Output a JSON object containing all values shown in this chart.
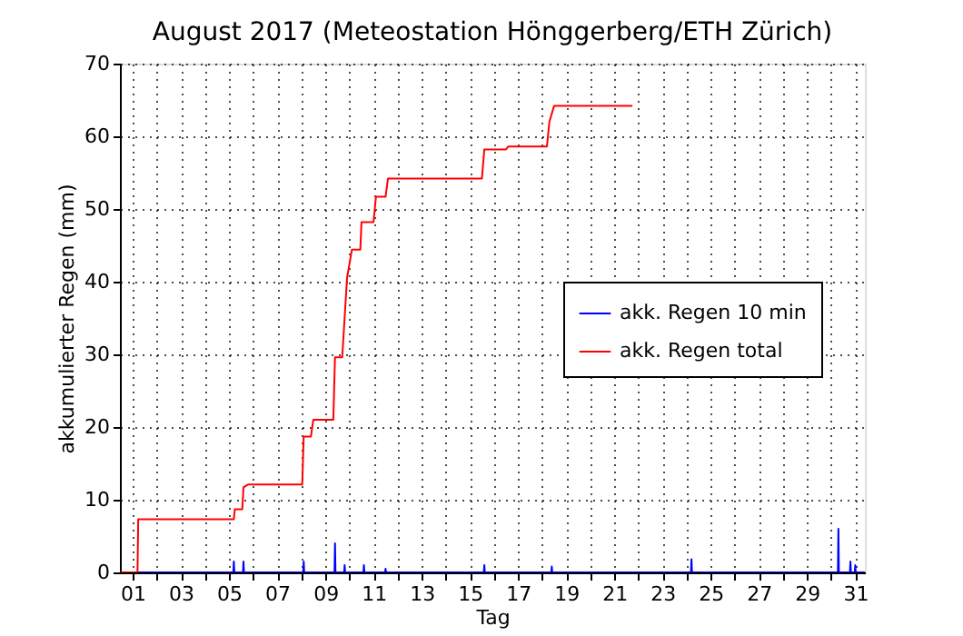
{
  "chart_data": {
    "type": "line",
    "title": "August 2017  (Meteostation Hönggerberg/ETH Zürich)",
    "xlabel": "Tag",
    "ylabel": "akkumulierter Regen (mm)",
    "xlim": [
      0.47,
      31.4
    ],
    "ylim": [
      0,
      70
    ],
    "xticks": [
      {
        "value": 1,
        "label": "01"
      },
      {
        "value": 2,
        "label": null
      },
      {
        "value": 3,
        "label": "03"
      },
      {
        "value": 4,
        "label": null
      },
      {
        "value": 5,
        "label": "05"
      },
      {
        "value": 6,
        "label": null
      },
      {
        "value": 7,
        "label": "07"
      },
      {
        "value": 8,
        "label": null
      },
      {
        "value": 9,
        "label": "09"
      },
      {
        "value": 10,
        "label": null
      },
      {
        "value": 11,
        "label": "11"
      },
      {
        "value": 12,
        "label": null
      },
      {
        "value": 13,
        "label": "13"
      },
      {
        "value": 14,
        "label": null
      },
      {
        "value": 15,
        "label": "15"
      },
      {
        "value": 16,
        "label": null
      },
      {
        "value": 17,
        "label": "17"
      },
      {
        "value": 18,
        "label": null
      },
      {
        "value": 19,
        "label": "19"
      },
      {
        "value": 20,
        "label": null
      },
      {
        "value": 21,
        "label": "21"
      },
      {
        "value": 22,
        "label": null
      },
      {
        "value": 23,
        "label": "23"
      },
      {
        "value": 24,
        "label": null
      },
      {
        "value": 25,
        "label": "25"
      },
      {
        "value": 26,
        "label": null
      },
      {
        "value": 27,
        "label": "27"
      },
      {
        "value": 28,
        "label": null
      },
      {
        "value": 29,
        "label": "29"
      },
      {
        "value": 30,
        "label": null
      },
      {
        "value": 31,
        "label": "31"
      }
    ],
    "yticks": [
      0,
      10,
      20,
      30,
      40,
      50,
      60,
      70
    ],
    "grid": true,
    "legend": "right",
    "line_style": "solid",
    "series": [
      {
        "name": "akk. Regen 10 min",
        "color": "#0000ff",
        "x": [
          0.47,
          5.18,
          5.2,
          5.22,
          5.58,
          5.6,
          5.62,
          8.08,
          8.1,
          8.12,
          9.38,
          9.4,
          9.42,
          9.78,
          9.8,
          9.82,
          10.58,
          10.6,
          10.62,
          11.48,
          11.5,
          11.52,
          15.58,
          15.6,
          15.62,
          18.38,
          18.4,
          18.42,
          24.18,
          24.2,
          24.22,
          30.28,
          30.3,
          30.32,
          30.78,
          30.8,
          30.82,
          30.98,
          31.0,
          31.02,
          31.4
        ],
        "values": [
          0,
          0,
          1.5,
          0,
          0,
          1.5,
          0,
          0,
          1.5,
          0,
          0,
          4,
          0,
          0,
          1,
          0,
          0,
          1,
          0,
          0,
          0.5,
          0,
          0,
          1,
          0,
          0,
          0.8,
          0,
          0,
          1.8,
          0,
          0,
          6,
          0,
          0,
          1.5,
          0,
          0,
          1,
          0,
          0
        ]
      },
      {
        "name": "akk. Regen total",
        "color": "#ff0000",
        "x": [
          0.47,
          1.2,
          1.23,
          5.2,
          5.24,
          5.55,
          5.6,
          5.8,
          8.04,
          8.1,
          8.4,
          8.5,
          9.33,
          9.4,
          9.7,
          9.9,
          10.1,
          10.45,
          10.5,
          11.0,
          11.1,
          11.5,
          11.6,
          15.5,
          15.6,
          16.5,
          16.6,
          18.2,
          18.3,
          18.5,
          21.75
        ],
        "values": [
          0,
          0,
          7.3,
          7.3,
          8.7,
          8.7,
          11.7,
          12.1,
          12.1,
          18.7,
          18.7,
          21,
          21,
          29.6,
          29.6,
          40.5,
          44.4,
          44.4,
          48.2,
          48.2,
          51.7,
          51.7,
          54.2,
          54.2,
          58.2,
          58.2,
          58.6,
          58.6,
          62,
          64.2,
          64.2
        ]
      }
    ]
  }
}
